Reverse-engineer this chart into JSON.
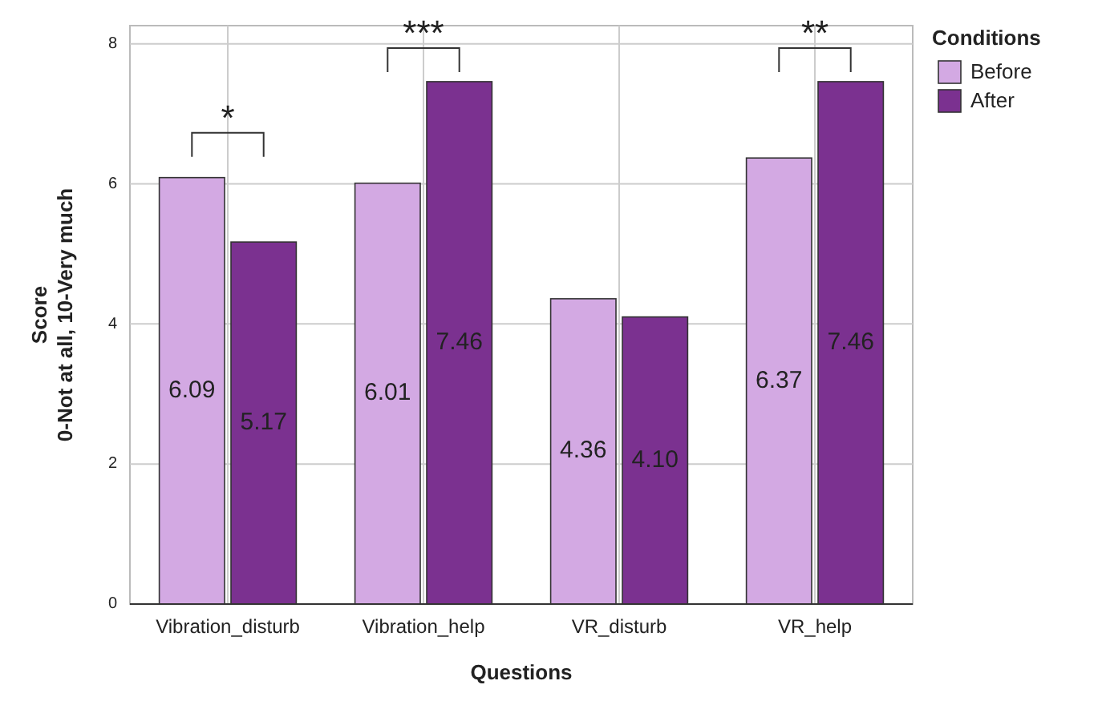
{
  "chart_data": {
    "type": "bar",
    "xlabel": "Questions",
    "ylabel": "Score\n0-Not at all, 10-Very much",
    "legend_title": "Conditions",
    "categories": [
      "Vibration_disturb",
      "Vibration_help",
      "VR_disturb",
      "VR_help"
    ],
    "series": [
      {
        "name": "Before",
        "color": "#d3a9e3",
        "values": [
          6.09,
          6.01,
          4.36,
          6.37
        ],
        "value_labels": [
          "6.09",
          "6.01",
          "4.36",
          "6.37"
        ]
      },
      {
        "name": "After",
        "color": "#7b3190",
        "values": [
          5.17,
          7.46,
          4.1,
          7.46
        ],
        "value_labels": [
          "5.17",
          "7.46",
          "4.10",
          "7.46"
        ]
      }
    ],
    "ylim": [
      0,
      8.26
    ],
    "yticks": [
      0,
      2,
      4,
      6,
      8
    ],
    "grid": true,
    "legend": "top right",
    "annotations": [
      "*",
      "***",
      "**"
    ]
  }
}
